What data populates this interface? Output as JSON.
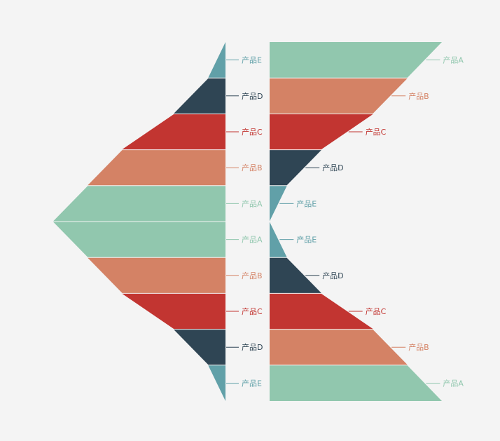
{
  "colors": {
    "background": "#f4f4f4",
    "产品A": "#91c7ae",
    "产品B": "#d48265",
    "产品C": "#c23531",
    "产品D": "#2f4554",
    "产品E": "#61a0a8"
  },
  "chart_data": [
    {
      "type": "funnel",
      "direction": "left",
      "sort": "ascending-from-top",
      "vertical_extent": "top-half-to-bottom-half",
      "categories": [
        "产品E",
        "产品D",
        "产品C",
        "产品B",
        "产品A",
        "产品A",
        "产品B",
        "产品C",
        "产品D",
        "产品E"
      ],
      "values": [
        10,
        30,
        60,
        80,
        100,
        100,
        80,
        60,
        30,
        10
      ],
      "max": 100,
      "label_position": "right",
      "legend": "none"
    },
    {
      "type": "funnel",
      "direction": "right",
      "sort": "descending-top-half-ascending-bottom-half",
      "categories": [
        "产品A",
        "产品B",
        "产品C",
        "产品D",
        "产品E",
        "产品E",
        "产品D",
        "产品C",
        "产品B",
        "产品A"
      ],
      "values": [
        100,
        80,
        60,
        30,
        10,
        10,
        30,
        60,
        80,
        100
      ],
      "max": 100,
      "label_position": "right",
      "legend": "none"
    }
  ]
}
